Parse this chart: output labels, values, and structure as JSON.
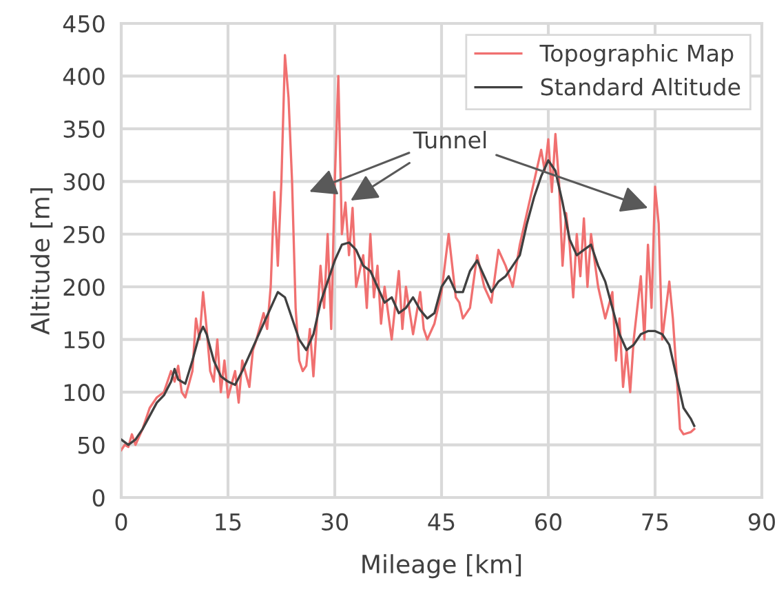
{
  "chart_data": {
    "type": "line",
    "xlabel": "Mileage [km]",
    "ylabel": "Altitude [m]",
    "xlim": [
      0,
      90
    ],
    "xticks": [
      0,
      15,
      30,
      45,
      60,
      75,
      90
    ],
    "ylim": [
      0,
      450
    ],
    "yticks": [
      0,
      50,
      100,
      150,
      200,
      250,
      300,
      350,
      400,
      450
    ],
    "grid": true,
    "legend": "top right",
    "marker": "none",
    "line_style": "solid",
    "series": [
      {
        "name": "Topographic Map",
        "color": "#f07070",
        "x": [
          0,
          0.5,
          1,
          1.5,
          2,
          3,
          4,
          5,
          6,
          7,
          7.5,
          8,
          8.5,
          9,
          10,
          10.5,
          11,
          11.5,
          12,
          12.5,
          13,
          13.5,
          14,
          14.5,
          15,
          16,
          16.5,
          17,
          18,
          18.5,
          19,
          20,
          20.5,
          21,
          21.5,
          22,
          22.5,
          23,
          23.5,
          24,
          24.5,
          25,
          25.5,
          26,
          26.5,
          27,
          28,
          28.5,
          29,
          29.5,
          30,
          30.5,
          31,
          31.5,
          32,
          32.5,
          33,
          34,
          34.5,
          35,
          35.5,
          36,
          36.5,
          37,
          38,
          39,
          39.5,
          40,
          41,
          42,
          42.5,
          43,
          44,
          45,
          46,
          47,
          47.5,
          48,
          49,
          50,
          51,
          52,
          53,
          54,
          55,
          56,
          57,
          58,
          59,
          59.5,
          60,
          60.5,
          61,
          61.5,
          62,
          62.5,
          63,
          63.5,
          64,
          64.5,
          65,
          65.5,
          66,
          67,
          68,
          69,
          69.5,
          70,
          70.5,
          71,
          71.5,
          72,
          73,
          73.5,
          74,
          74.5,
          75,
          75.5,
          76,
          77,
          77.5,
          78,
          78.5,
          79,
          80,
          80.5
        ],
        "values": [
          45,
          50,
          48,
          60,
          50,
          65,
          85,
          95,
          100,
          120,
          110,
          125,
          100,
          95,
          120,
          170,
          150,
          195,
          160,
          120,
          110,
          150,
          100,
          130,
          95,
          120,
          90,
          130,
          105,
          140,
          150,
          175,
          160,
          200,
          290,
          220,
          300,
          420,
          380,
          300,
          180,
          130,
          120,
          125,
          160,
          115,
          220,
          180,
          250,
          160,
          300,
          400,
          250,
          280,
          230,
          275,
          200,
          230,
          180,
          250,
          190,
          220,
          165,
          200,
          150,
          215,
          160,
          200,
          155,
          195,
          160,
          150,
          165,
          195,
          250,
          190,
          185,
          170,
          180,
          230,
          200,
          185,
          235,
          220,
          200,
          240,
          270,
          300,
          330,
          310,
          340,
          290,
          345,
          300,
          220,
          270,
          240,
          190,
          250,
          210,
          265,
          200,
          250,
          200,
          170,
          195,
          130,
          170,
          105,
          140,
          100,
          150,
          210,
          150,
          240,
          180,
          295,
          260,
          150,
          205,
          170,
          120,
          65,
          60,
          62,
          65
        ]
      },
      {
        "name": "Standard Altitude",
        "color": "#404040",
        "x": [
          0,
          1,
          2,
          3,
          5,
          6,
          7,
          7.5,
          8,
          9,
          10,
          11,
          11.5,
          12,
          13,
          14,
          15,
          16,
          17,
          19,
          21,
          22,
          23,
          24,
          25,
          26,
          27,
          28,
          30,
          31,
          32,
          33,
          34,
          35,
          36,
          37,
          38,
          39,
          40,
          41,
          42,
          43,
          44,
          45,
          46,
          47,
          48,
          49,
          50,
          51,
          52,
          53,
          54,
          55,
          56,
          57,
          58,
          59,
          60,
          61,
          62,
          63,
          64,
          65,
          66,
          67,
          68,
          69,
          70,
          71,
          72,
          73,
          74,
          75,
          76,
          77,
          78,
          79,
          80,
          80.5
        ],
        "values": [
          55,
          50,
          55,
          65,
          90,
          97,
          110,
          122,
          112,
          108,
          130,
          155,
          162,
          155,
          130,
          115,
          110,
          107,
          120,
          150,
          180,
          195,
          190,
          170,
          150,
          140,
          155,
          185,
          225,
          240,
          242,
          235,
          220,
          215,
          200,
          185,
          190,
          175,
          180,
          190,
          178,
          170,
          175,
          200,
          210,
          195,
          195,
          215,
          225,
          210,
          195,
          205,
          210,
          220,
          230,
          260,
          285,
          305,
          320,
          310,
          280,
          245,
          230,
          235,
          240,
          220,
          205,
          180,
          155,
          140,
          145,
          155,
          158,
          158,
          155,
          145,
          115,
          85,
          75,
          68
        ]
      }
    ],
    "annotations": [
      "Tunnel"
    ]
  }
}
